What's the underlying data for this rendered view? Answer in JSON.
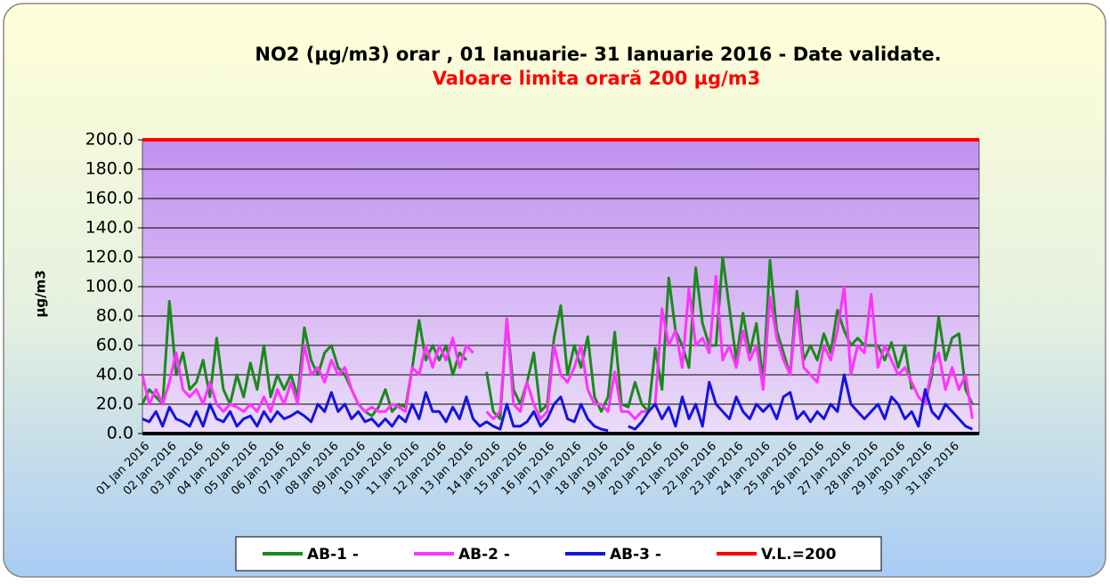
{
  "chart_data": {
    "type": "line",
    "title": "NO2 (µg/m3) orar ,  01 Ianuarie- 31 Ianuarie 2016 - Date validate.",
    "subtitle": "Valoare limita orară  200 µg/m3",
    "y_label": "µg/m3",
    "legend": "bottom",
    "grid": true,
    "ylim": [
      0,
      200
    ],
    "yticks": [
      {
        "value": 0,
        "label": "0.0"
      },
      {
        "value": 20,
        "label": "20.0"
      },
      {
        "value": 40,
        "label": "40.0"
      },
      {
        "value": 60,
        "label": "60.0"
      },
      {
        "value": 80,
        "label": "80.0"
      },
      {
        "value": 100,
        "label": "100.0"
      },
      {
        "value": 120,
        "label": "120.0"
      },
      {
        "value": 140,
        "label": "140.0"
      },
      {
        "value": 160,
        "label": "160.0"
      },
      {
        "value": 180,
        "label": "180.0"
      },
      {
        "value": 200,
        "label": "200.0"
      }
    ],
    "categories": [
      "01 Jan 2016",
      null,
      null,
      null,
      "02 Jan 2016",
      null,
      null,
      null,
      "03 Jan 2016",
      null,
      null,
      null,
      "04 Jan 2016",
      null,
      null,
      null,
      "05 Jan 2016",
      null,
      null,
      null,
      "06 Jan 2016",
      null,
      null,
      null,
      "07 Jan 2016",
      null,
      null,
      null,
      "08 Jan 2016",
      null,
      null,
      null,
      "09 Jan 2016",
      null,
      null,
      null,
      "10 Jan 2016",
      null,
      null,
      null,
      "11 Jan 2016",
      null,
      null,
      null,
      "12 Jan 2016",
      null,
      null,
      null,
      "13 Jan 2016",
      null,
      null,
      null,
      "14 Jan 2016",
      null,
      null,
      null,
      "15 Jan 2016",
      null,
      null,
      null,
      "16 Jan 2016",
      null,
      null,
      null,
      "17 Jan 2016",
      null,
      null,
      null,
      "18 Jan 2016",
      null,
      null,
      null,
      "19 Jan 2016",
      null,
      null,
      null,
      "20 Jan 2016",
      null,
      null,
      null,
      "21 Jan 2016",
      null,
      null,
      null,
      "22 Jan 2016",
      null,
      null,
      null,
      "23 Jan 2016",
      null,
      null,
      null,
      "24 Jan 2016",
      null,
      null,
      null,
      "25 Jan 2016",
      null,
      null,
      null,
      "26 Jan 2016",
      null,
      null,
      null,
      "27 Jan 2016",
      null,
      null,
      null,
      "28 Jan 2016",
      null,
      null,
      null,
      "29 Jan 2016",
      null,
      null,
      null,
      "30 Jan 2016",
      null,
      null,
      null,
      "31 Jan 2016",
      null,
      null,
      null
    ],
    "series": [
      {
        "name": "AB-1 -",
        "color": "#1a8a1a",
        "values": [
          20,
          30,
          25,
          20,
          90,
          40,
          55,
          30,
          35,
          50,
          25,
          65,
          30,
          20,
          40,
          25,
          48,
          30,
          60,
          25,
          40,
          30,
          40,
          25,
          72,
          50,
          40,
          55,
          60,
          45,
          40,
          30,
          20,
          15,
          12,
          18,
          30,
          15,
          20,
          18,
          45,
          77,
          50,
          60,
          50,
          60,
          40,
          55,
          50,
          null,
          null,
          42,
          15,
          10,
          78,
          30,
          20,
          35,
          55,
          15,
          20,
          65,
          87,
          40,
          60,
          45,
          66,
          25,
          15,
          25,
          69,
          20,
          18,
          35,
          20,
          15,
          58,
          30,
          106,
          70,
          60,
          45,
          113,
          75,
          60,
          60,
          120,
          85,
          50,
          82,
          55,
          75,
          35,
          118,
          70,
          55,
          40,
          97,
          50,
          60,
          50,
          68,
          55,
          84,
          70,
          60,
          65,
          60,
          60,
          60,
          50,
          62,
          45,
          60,
          30,
          null,
          20,
          40,
          79,
          50,
          65,
          68,
          30,
          20
        ]
      },
      {
        "name": "AB-2 -",
        "color": "#ff33ff",
        "values": [
          40,
          20,
          30,
          20,
          35,
          55,
          30,
          25,
          30,
          20,
          35,
          20,
          15,
          20,
          18,
          15,
          20,
          15,
          25,
          15,
          30,
          20,
          35,
          20,
          60,
          40,
          45,
          35,
          50,
          40,
          45,
          30,
          20,
          15,
          18,
          15,
          15,
          20,
          18,
          15,
          45,
          40,
          60,
          45,
          60,
          50,
          65,
          45,
          60,
          55,
          null,
          15,
          10,
          15,
          78,
          20,
          15,
          35,
          20,
          10,
          15,
          60,
          40,
          35,
          45,
          60,
          30,
          20,
          20,
          15,
          42,
          15,
          15,
          10,
          15,
          15,
          20,
          85,
          60,
          70,
          45,
          99,
          60,
          65,
          55,
          107,
          50,
          60,
          45,
          70,
          50,
          60,
          30,
          93,
          65,
          50,
          40,
          85,
          45,
          40,
          35,
          60,
          50,
          70,
          100,
          40,
          60,
          55,
          95,
          45,
          60,
          50,
          40,
          45,
          35,
          25,
          20,
          45,
          55,
          30,
          45,
          30,
          40,
          10
        ]
      },
      {
        "name": "AB-3 -",
        "color": "#1414e0",
        "values": [
          10,
          8,
          15,
          5,
          18,
          10,
          8,
          5,
          15,
          5,
          20,
          10,
          8,
          15,
          5,
          10,
          12,
          5,
          15,
          8,
          15,
          10,
          12,
          15,
          12,
          8,
          20,
          15,
          28,
          15,
          20,
          10,
          15,
          8,
          10,
          5,
          10,
          5,
          12,
          8,
          20,
          10,
          28,
          15,
          15,
          8,
          18,
          10,
          25,
          10,
          5,
          8,
          5,
          3,
          20,
          5,
          5,
          8,
          15,
          5,
          10,
          20,
          25,
          10,
          8,
          20,
          10,
          5,
          3,
          2,
          null,
          null,
          5,
          3,
          8,
          15,
          20,
          10,
          18,
          5,
          25,
          10,
          20,
          5,
          35,
          20,
          15,
          10,
          25,
          15,
          10,
          20,
          15,
          20,
          10,
          25,
          28,
          10,
          15,
          8,
          15,
          10,
          20,
          15,
          40,
          20,
          15,
          10,
          15,
          20,
          10,
          25,
          20,
          10,
          15,
          5,
          30,
          15,
          10,
          20,
          15,
          10,
          5,
          3
        ]
      }
    ],
    "limit": {
      "name": "V.L.=200",
      "value": 200,
      "color": "#ff0000"
    }
  }
}
